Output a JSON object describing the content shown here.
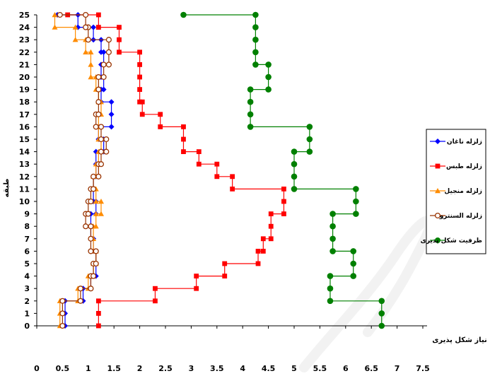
{
  "chart_data": {
    "type": "line",
    "orientation": "step-profile",
    "xlabel": "نیاز شکل پذیری",
    "ylabel": "طبقه",
    "xlim": [
      0,
      7.5
    ],
    "ylim": [
      0,
      25
    ],
    "x_ticks": [
      "0",
      "0.5",
      "1",
      "1.5",
      "2",
      "2.5",
      "3",
      "3.5",
      "4",
      "4.5",
      "5",
      "5.5",
      "6",
      "6.5",
      "7",
      "7.5"
    ],
    "y_ticks": [
      "0",
      "1",
      "2",
      "3",
      "4",
      "5",
      "6",
      "7",
      "8",
      "9",
      "10",
      "11",
      "12",
      "13",
      "14",
      "15",
      "16",
      "17",
      "18",
      "19",
      "20",
      "21",
      "22",
      "23",
      "24",
      "25"
    ],
    "grid": false,
    "legend_position": "right",
    "series": [
      {
        "name": "زلزله ناغان",
        "color": "#0000ff",
        "marker": "diamond",
        "values": [
          0.55,
          0.55,
          0.9,
          1.05,
          1.15,
          1.15,
          1.1,
          1.05,
          1.05,
          1.15,
          1.1,
          1.1,
          1.15,
          1.15,
          1.3,
          1.2,
          1.45,
          1.45,
          1.25,
          1.3,
          1.25,
          1.3,
          1.25,
          1.1,
          0.8,
          0.4
        ]
      },
      {
        "name": "زلزله طبس",
        "color": "#ff0000",
        "marker": "square",
        "values": [
          1.2,
          1.2,
          2.3,
          3.1,
          3.65,
          4.3,
          4.4,
          4.55,
          4.55,
          4.8,
          4.8,
          3.8,
          3.5,
          3.15,
          2.85,
          2.85,
          2.4,
          2.05,
          2.0,
          2.0,
          2.0,
          2.0,
          1.6,
          1.6,
          1.2,
          0.6
        ]
      },
      {
        "name": "زلزله منجیل",
        "color": "#ff8c00",
        "marker": "triangle",
        "values": [
          0.45,
          0.45,
          0.8,
          1.0,
          1.1,
          1.15,
          1.1,
          1.1,
          1.15,
          1.25,
          1.15,
          1.1,
          1.15,
          1.2,
          1.25,
          1.2,
          1.2,
          1.25,
          1.2,
          1.15,
          1.05,
          1.05,
          0.95,
          0.75,
          0.35,
          0.35
        ]
      },
      {
        "name": "زلزله السنترو",
        "color": "#993300",
        "marker": "open-circle",
        "values": [
          0.5,
          0.5,
          0.85,
          1.05,
          1.1,
          1.15,
          1.05,
          1.05,
          0.95,
          1.0,
          1.05,
          1.1,
          1.2,
          1.25,
          1.35,
          1.25,
          1.15,
          1.2,
          1.2,
          1.2,
          1.3,
          1.4,
          1.4,
          1.0,
          0.95,
          0.45
        ]
      },
      {
        "name": "ظرفیت شکل پذیری",
        "color": "#008000",
        "marker": "circle",
        "values": [
          6.7,
          6.7,
          5.7,
          5.7,
          6.15,
          6.15,
          5.75,
          5.75,
          5.75,
          6.2,
          6.2,
          5.0,
          5.0,
          5.0,
          5.3,
          5.3,
          4.15,
          4.15,
          4.15,
          4.5,
          4.5,
          4.25,
          4.25,
          4.25,
          4.25,
          2.85
        ]
      }
    ]
  },
  "watermark_text": "archive"
}
